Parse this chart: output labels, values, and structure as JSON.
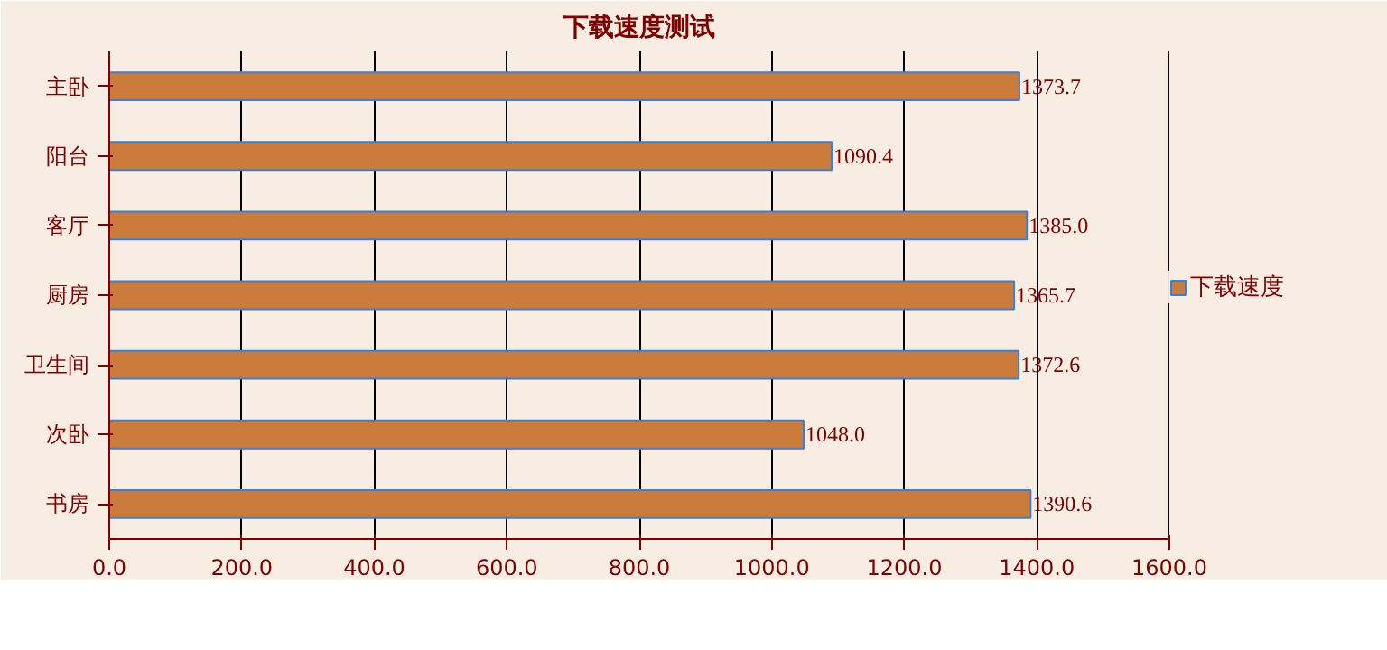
{
  "chart_data": {
    "type": "bar",
    "orientation": "horizontal",
    "title": "下载速度测试",
    "categories": [
      "主卧",
      "阳台",
      "客厅",
      "厨房",
      "卫生间",
      "次卧",
      "书房"
    ],
    "series": [
      {
        "name": "下载速度",
        "color": "#cc7c3a",
        "values": [
          1373.7,
          1090.4,
          1385.0,
          1365.7,
          1372.6,
          1048.0,
          1390.6
        ],
        "value_labels": [
          "1373.7",
          "1090.4",
          "1385.0",
          "1365.7",
          "1372.6",
          "1048.0",
          "1390.6"
        ]
      }
    ],
    "xlim": [
      0,
      1600
    ],
    "xticks": [
      {
        "value": 0,
        "label": "0.0"
      },
      {
        "value": 200,
        "label": "200.0"
      },
      {
        "value": 400,
        "label": "400.0"
      },
      {
        "value": 600,
        "label": "600.0"
      },
      {
        "value": 800,
        "label": "800.0"
      },
      {
        "value": 1000,
        "label": "1000.0"
      },
      {
        "value": 1200,
        "label": "1200.0"
      },
      {
        "value": 1400,
        "label": "1400.0"
      },
      {
        "value": 1600,
        "label": "1600.0"
      }
    ],
    "grid": "x",
    "legend": "right"
  }
}
